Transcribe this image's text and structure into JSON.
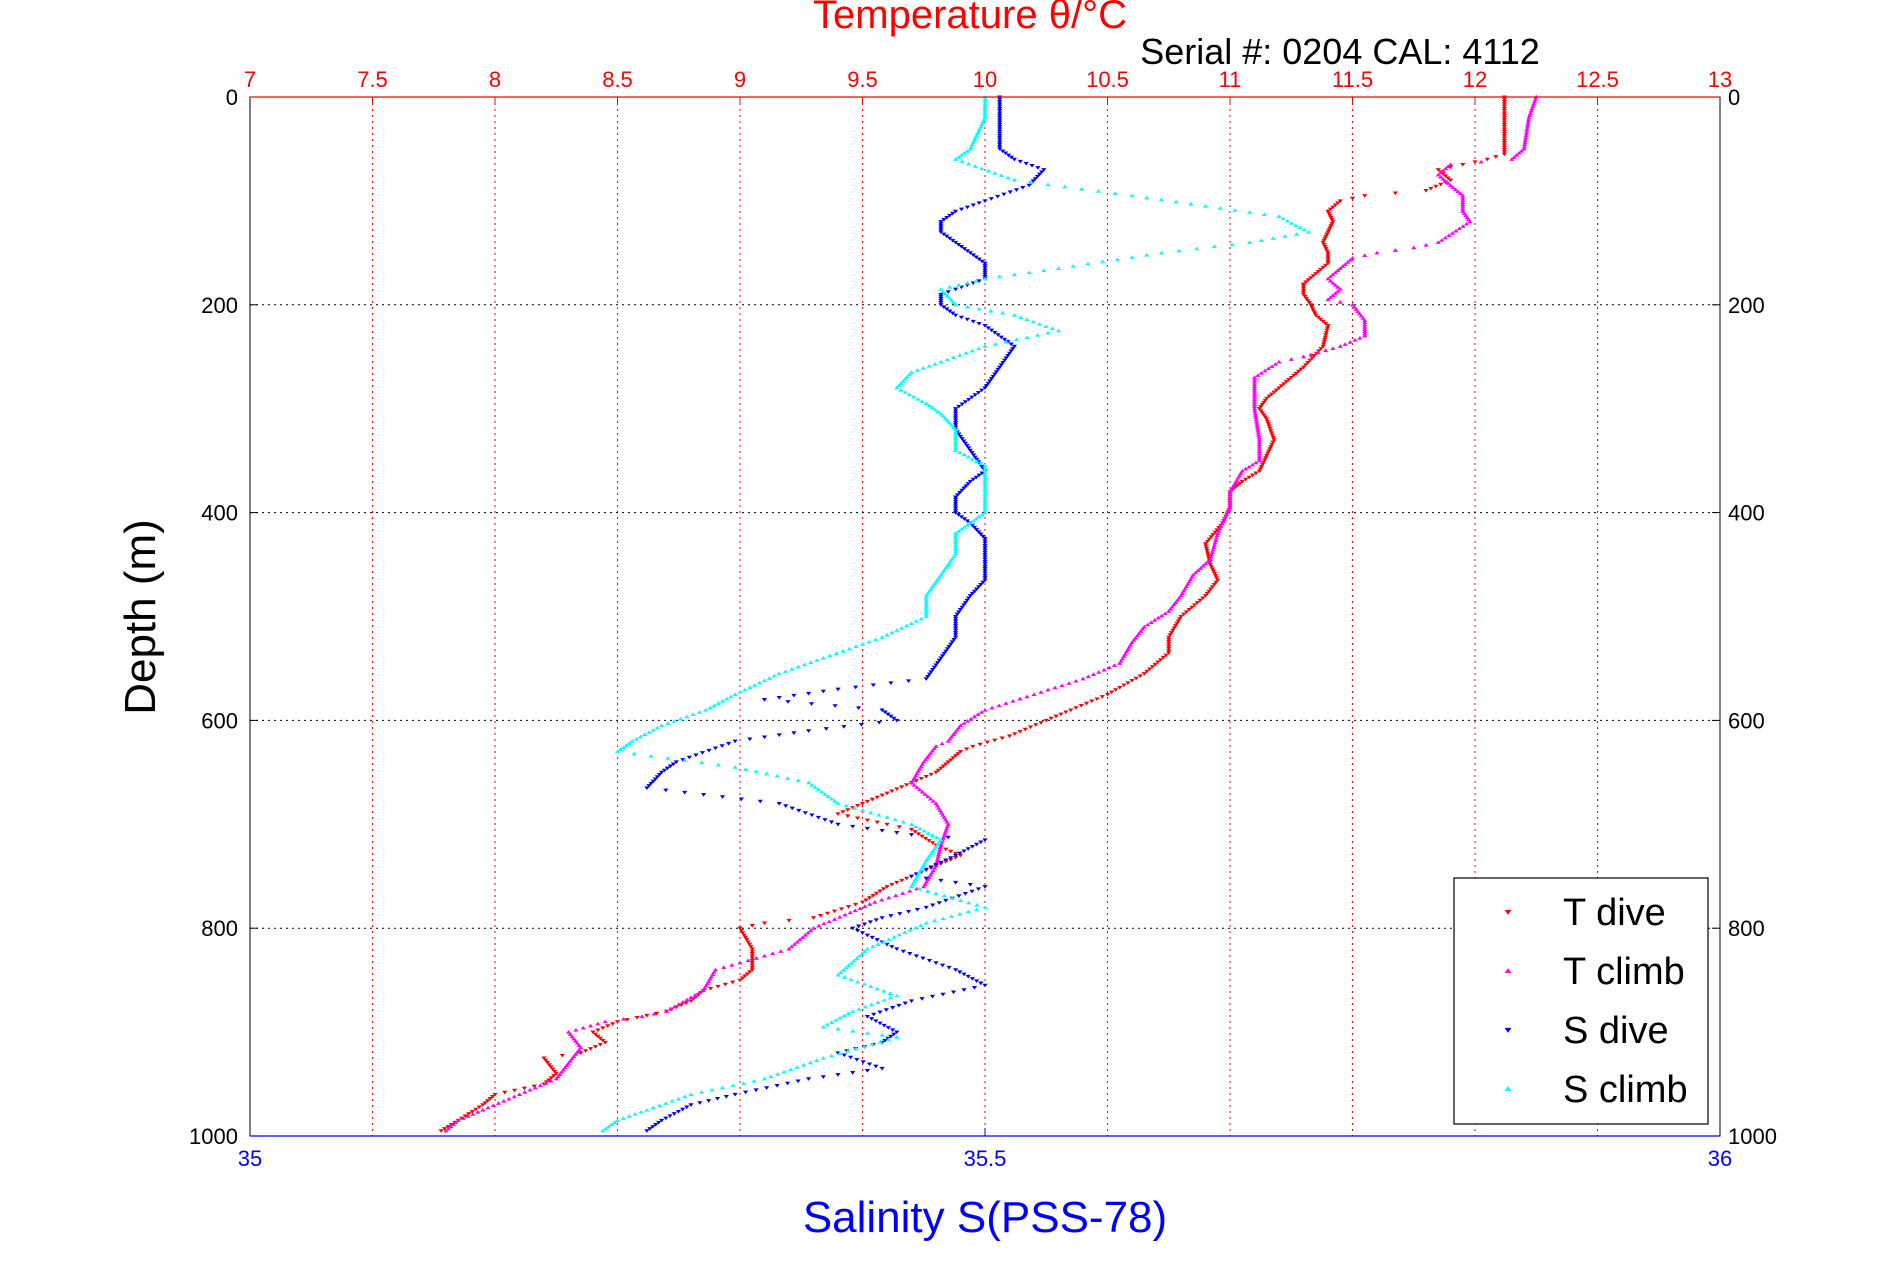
{
  "colors": {
    "t_dive": "#ff0000",
    "t_climb": "#ff00ff",
    "s_dive": "#0000ff",
    "s_climb": "#00ffff",
    "temp_axis": "#ff0000",
    "sal_axis": "#0000ff",
    "depth_axis": "#000000"
  },
  "chart_data": {
    "type": "scatter",
    "title": "Temperature θ/°C",
    "subtitle": "Serial #: 0204  CAL: 4112",
    "xlabel": "Salinity S(PSS-78)",
    "ylabel": "Depth (m)",
    "temp_axis": {
      "range": [
        7,
        13
      ],
      "ticks": [
        "7",
        "7.5",
        "8",
        "8.5",
        "9",
        "9.5",
        "10",
        "10.5",
        "11",
        "11.5",
        "12",
        "12.5",
        "13"
      ]
    },
    "sal_axis": {
      "range": [
        35,
        36
      ],
      "ticks": [
        "35",
        "35.5",
        "36"
      ]
    },
    "depth_axis": {
      "range": [
        0,
        1000
      ],
      "reversed": true,
      "ticks": [
        "0",
        "200",
        "400",
        "600",
        "800",
        "1000"
      ]
    },
    "grid": true,
    "legend": {
      "position": "bottom-right",
      "entries": [
        "T dive",
        "T climb",
        "S dive",
        "S climb"
      ]
    },
    "series": [
      {
        "name": "T dive",
        "axis": "temp",
        "marker": "triangle-down",
        "color_key": "t_dive",
        "points": [
          [
            12.12,
            0
          ],
          [
            12.12,
            20
          ],
          [
            12.12,
            55
          ],
          [
            12.05,
            60
          ],
          [
            11.95,
            65
          ],
          [
            11.85,
            70
          ],
          [
            11.9,
            80
          ],
          [
            11.8,
            90
          ],
          [
            11.55,
            95
          ],
          [
            11.45,
            100
          ],
          [
            11.4,
            110
          ],
          [
            11.42,
            120
          ],
          [
            11.4,
            130
          ],
          [
            11.38,
            140
          ],
          [
            11.4,
            150
          ],
          [
            11.4,
            160
          ],
          [
            11.35,
            170
          ],
          [
            11.3,
            180
          ],
          [
            11.3,
            190
          ],
          [
            11.33,
            200
          ],
          [
            11.35,
            210
          ],
          [
            11.4,
            220
          ],
          [
            11.38,
            240
          ],
          [
            11.3,
            260
          ],
          [
            11.25,
            270
          ],
          [
            11.2,
            280
          ],
          [
            11.15,
            290
          ],
          [
            11.12,
            300
          ],
          [
            11.15,
            310
          ],
          [
            11.18,
            330
          ],
          [
            11.15,
            345
          ],
          [
            11.12,
            360
          ],
          [
            11.05,
            370
          ],
          [
            11.0,
            380
          ],
          [
            11.0,
            395
          ],
          [
            10.97,
            410
          ],
          [
            10.9,
            430
          ],
          [
            10.92,
            450
          ],
          [
            10.95,
            465
          ],
          [
            10.9,
            480
          ],
          [
            10.8,
            500
          ],
          [
            10.75,
            520
          ],
          [
            10.75,
            535
          ],
          [
            10.65,
            555
          ],
          [
            10.5,
            575
          ],
          [
            10.35,
            590
          ],
          [
            10.25,
            600
          ],
          [
            10.1,
            615
          ],
          [
            9.95,
            625
          ],
          [
            9.9,
            630
          ],
          [
            9.85,
            640
          ],
          [
            9.8,
            650
          ],
          [
            9.7,
            660
          ],
          [
            9.6,
            670
          ],
          [
            9.5,
            680
          ],
          [
            9.4,
            690
          ],
          [
            9.6,
            700
          ],
          [
            9.7,
            705
          ],
          [
            9.8,
            720
          ],
          [
            9.9,
            730
          ],
          [
            9.8,
            740
          ],
          [
            9.7,
            750
          ],
          [
            9.6,
            760
          ],
          [
            9.5,
            775
          ],
          [
            9.3,
            790
          ],
          [
            9.1,
            795
          ],
          [
            9.0,
            800
          ],
          [
            9.05,
            820
          ],
          [
            9.05,
            840
          ],
          [
            9.0,
            850
          ],
          [
            8.85,
            860
          ],
          [
            8.8,
            870
          ],
          [
            8.7,
            880
          ],
          [
            8.5,
            890
          ],
          [
            8.4,
            900
          ],
          [
            8.45,
            910
          ],
          [
            8.35,
            920
          ],
          [
            8.2,
            925
          ],
          [
            8.25,
            940
          ],
          [
            8.2,
            950
          ],
          [
            8.0,
            960
          ],
          [
            7.95,
            970
          ],
          [
            7.85,
            985
          ],
          [
            7.78,
            995
          ]
        ]
      },
      {
        "name": "T climb",
        "axis": "temp",
        "marker": "triangle-up",
        "color_key": "t_climb",
        "points": [
          [
            12.25,
            0
          ],
          [
            12.22,
            20
          ],
          [
            12.2,
            50
          ],
          [
            12.15,
            60
          ],
          [
            11.9,
            65
          ],
          [
            11.85,
            75
          ],
          [
            11.9,
            85
          ],
          [
            11.95,
            95
          ],
          [
            11.95,
            110
          ],
          [
            11.98,
            120
          ],
          [
            11.85,
            140
          ],
          [
            11.75,
            145
          ],
          [
            11.6,
            150
          ],
          [
            11.5,
            155
          ],
          [
            11.45,
            165
          ],
          [
            11.4,
            175
          ],
          [
            11.45,
            185
          ],
          [
            11.4,
            195
          ],
          [
            11.5,
            200
          ],
          [
            11.55,
            215
          ],
          [
            11.55,
            230
          ],
          [
            11.45,
            240
          ],
          [
            11.3,
            250
          ],
          [
            11.2,
            255
          ],
          [
            11.1,
            270
          ],
          [
            11.1,
            300
          ],
          [
            11.12,
            330
          ],
          [
            11.12,
            350
          ],
          [
            11.05,
            360
          ],
          [
            11.0,
            380
          ],
          [
            11.0,
            395
          ],
          [
            10.95,
            420
          ],
          [
            10.92,
            445
          ],
          [
            10.85,
            460
          ],
          [
            10.8,
            480
          ],
          [
            10.75,
            495
          ],
          [
            10.65,
            510
          ],
          [
            10.6,
            525
          ],
          [
            10.55,
            545
          ],
          [
            10.4,
            560
          ],
          [
            10.2,
            575
          ],
          [
            10.0,
            590
          ],
          [
            9.9,
            605
          ],
          [
            9.85,
            620
          ],
          [
            9.8,
            625
          ],
          [
            9.75,
            640
          ],
          [
            9.7,
            660
          ],
          [
            9.8,
            680
          ],
          [
            9.85,
            700
          ],
          [
            9.82,
            720
          ],
          [
            9.8,
            740
          ],
          [
            9.75,
            760
          ],
          [
            9.55,
            775
          ],
          [
            9.45,
            785
          ],
          [
            9.3,
            800
          ],
          [
            9.2,
            820
          ],
          [
            8.9,
            840
          ],
          [
            8.85,
            860
          ],
          [
            8.7,
            880
          ],
          [
            8.6,
            885
          ],
          [
            8.45,
            890
          ],
          [
            8.3,
            900
          ],
          [
            8.35,
            915
          ],
          [
            8.3,
            930
          ],
          [
            8.25,
            945
          ],
          [
            8.1,
            960
          ],
          [
            7.95,
            975
          ],
          [
            7.85,
            985
          ],
          [
            7.8,
            995
          ]
        ]
      },
      {
        "name": "S dive",
        "axis": "sal",
        "marker": "triangle-down",
        "color_key": "s_dive",
        "points": [
          [
            35.51,
            0
          ],
          [
            35.51,
            20
          ],
          [
            35.51,
            50
          ],
          [
            35.52,
            60
          ],
          [
            35.54,
            70
          ],
          [
            35.53,
            85
          ],
          [
            35.5,
            100
          ],
          [
            35.48,
            110
          ],
          [
            35.47,
            120
          ],
          [
            35.47,
            130
          ],
          [
            35.48,
            140
          ],
          [
            35.49,
            150
          ],
          [
            35.5,
            160
          ],
          [
            35.5,
            175
          ],
          [
            35.48,
            185
          ],
          [
            35.47,
            190
          ],
          [
            35.47,
            200
          ],
          [
            35.48,
            210
          ],
          [
            35.5,
            220
          ],
          [
            35.52,
            240
          ],
          [
            35.51,
            260
          ],
          [
            35.5,
            280
          ],
          [
            35.48,
            300
          ],
          [
            35.48,
            320
          ],
          [
            35.49,
            340
          ],
          [
            35.5,
            360
          ],
          [
            35.49,
            370
          ],
          [
            35.48,
            385
          ],
          [
            35.48,
            400
          ],
          [
            35.49,
            410
          ],
          [
            35.5,
            425
          ],
          [
            35.5,
            445
          ],
          [
            35.5,
            465
          ],
          [
            35.49,
            480
          ],
          [
            35.48,
            500
          ],
          [
            35.48,
            520
          ],
          [
            35.47,
            540
          ],
          [
            35.46,
            560
          ],
          [
            35.4,
            570
          ],
          [
            35.35,
            580
          ],
          [
            35.43,
            590
          ],
          [
            35.44,
            600
          ],
          [
            35.38,
            610
          ],
          [
            35.33,
            620
          ],
          [
            35.29,
            640
          ],
          [
            35.28,
            650
          ],
          [
            35.27,
            665
          ],
          [
            35.36,
            680
          ],
          [
            35.4,
            700
          ],
          [
            35.45,
            710
          ],
          [
            35.5,
            715
          ],
          [
            35.48,
            730
          ],
          [
            35.45,
            750
          ],
          [
            35.5,
            760
          ],
          [
            35.46,
            780
          ],
          [
            35.43,
            790
          ],
          [
            35.41,
            800
          ],
          [
            35.44,
            820
          ],
          [
            35.48,
            840
          ],
          [
            35.5,
            855
          ],
          [
            35.45,
            870
          ],
          [
            35.42,
            885
          ],
          [
            35.44,
            900
          ],
          [
            35.43,
            910
          ],
          [
            35.4,
            920
          ],
          [
            35.43,
            935
          ],
          [
            35.38,
            945
          ],
          [
            35.33,
            960
          ],
          [
            35.3,
            970
          ],
          [
            35.28,
            985
          ],
          [
            35.27,
            995
          ]
        ]
      },
      {
        "name": "S climb",
        "axis": "sal",
        "marker": "triangle-up",
        "color_key": "s_climb",
        "points": [
          [
            35.5,
            0
          ],
          [
            35.5,
            20
          ],
          [
            35.49,
            50
          ],
          [
            35.48,
            60
          ],
          [
            35.52,
            80
          ],
          [
            35.6,
            95
          ],
          [
            35.65,
            105
          ],
          [
            35.7,
            115
          ],
          [
            35.72,
            130
          ],
          [
            35.68,
            140
          ],
          [
            35.62,
            150
          ],
          [
            35.55,
            165
          ],
          [
            35.5,
            175
          ],
          [
            35.47,
            185
          ],
          [
            35.48,
            200
          ],
          [
            35.52,
            210
          ],
          [
            35.55,
            225
          ],
          [
            35.5,
            240
          ],
          [
            35.47,
            255
          ],
          [
            35.45,
            265
          ],
          [
            35.44,
            280
          ],
          [
            35.46,
            295
          ],
          [
            35.47,
            305
          ],
          [
            35.48,
            320
          ],
          [
            35.48,
            340
          ],
          [
            35.5,
            355
          ],
          [
            35.5,
            380
          ],
          [
            35.5,
            400
          ],
          [
            35.49,
            410
          ],
          [
            35.48,
            420
          ],
          [
            35.48,
            440
          ],
          [
            35.47,
            460
          ],
          [
            35.46,
            480
          ],
          [
            35.46,
            500
          ],
          [
            35.43,
            520
          ],
          [
            35.39,
            540
          ],
          [
            35.36,
            555
          ],
          [
            35.33,
            575
          ],
          [
            35.31,
            590
          ],
          [
            35.28,
            605
          ],
          [
            35.26,
            620
          ],
          [
            35.25,
            630
          ],
          [
            35.33,
            645
          ],
          [
            35.38,
            660
          ],
          [
            35.4,
            680
          ],
          [
            35.45,
            700
          ],
          [
            35.47,
            715
          ],
          [
            35.46,
            735
          ],
          [
            35.45,
            760
          ],
          [
            35.5,
            780
          ],
          [
            35.46,
            795
          ],
          [
            35.42,
            820
          ],
          [
            35.4,
            845
          ],
          [
            35.44,
            865
          ],
          [
            35.41,
            880
          ],
          [
            35.39,
            895
          ],
          [
            35.44,
            905
          ],
          [
            35.39,
            925
          ],
          [
            35.35,
            945
          ],
          [
            35.3,
            960
          ],
          [
            35.27,
            975
          ],
          [
            35.25,
            985
          ],
          [
            35.24,
            995
          ]
        ]
      }
    ]
  }
}
